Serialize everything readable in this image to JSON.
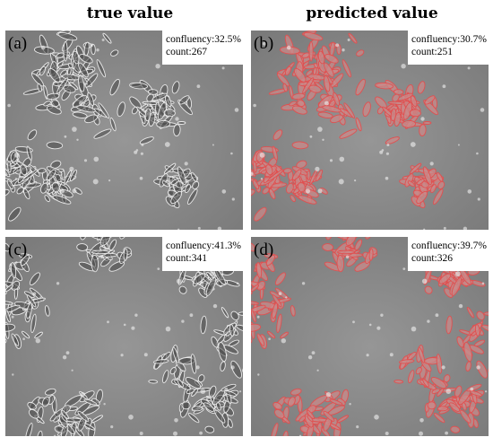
{
  "headers": {
    "left": "true value",
    "right": "predicted value"
  },
  "panels": [
    {
      "id": "a",
      "letter": "(a)",
      "confluency": "confluency:32.5%",
      "count": "count:267",
      "overlay": false,
      "seed": 11
    },
    {
      "id": "b",
      "letter": "(b)",
      "confluency": "confluency:30.7%",
      "count": "count:251",
      "overlay": true,
      "seed": 11
    },
    {
      "id": "c",
      "letter": "(c)",
      "confluency": "confluency:41.3%",
      "count": "count:341",
      "overlay": false,
      "seed": 29
    },
    {
      "id": "d",
      "letter": "(d)",
      "confluency": "confluency:39.7%",
      "count": "count:326",
      "overlay": true,
      "seed": 29
    }
  ],
  "colors": {
    "background_gray": "#8a8a8a",
    "cell_edge_light": "#e8e8e8",
    "cell_body_dark": "#4a4a4a",
    "overlay_red": "#e05050"
  }
}
